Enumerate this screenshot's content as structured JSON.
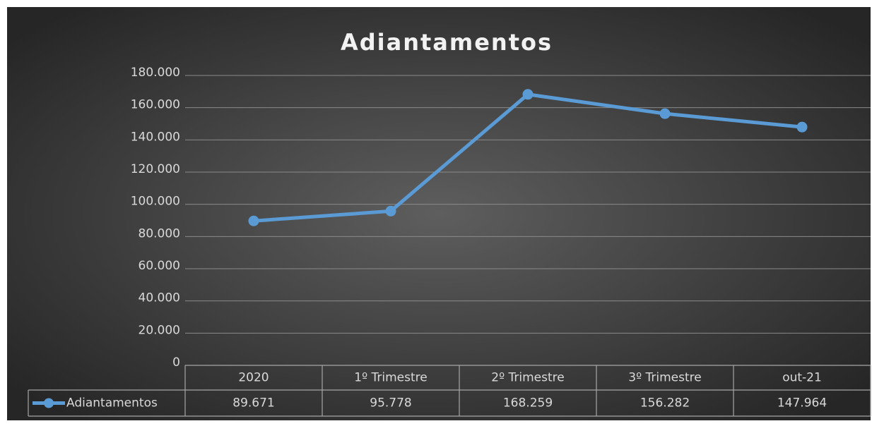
{
  "chart_data": {
    "type": "line",
    "title": "Adiantamentos",
    "categories": [
      "2020",
      "1º Trimestre",
      "2º Trimestre",
      "3º Trimestre",
      "out-21"
    ],
    "series": [
      {
        "name": "Adiantamentos",
        "color": "#5b9bd5",
        "values": [
          89671,
          95778,
          168259,
          156282,
          147964
        ],
        "value_labels": [
          "89.671",
          "95.778",
          "168.259",
          "156.282",
          "147.964"
        ]
      }
    ],
    "ylim": [
      0,
      180000
    ],
    "yticks": [
      0,
      {
        "value": 20000,
        "label": "20.000"
      },
      {
        "value": 40000,
        "label": "40.000"
      },
      {
        "value": 60000,
        "label": "60.000"
      },
      {
        "value": 80000,
        "label": "80.000"
      },
      {
        "value": 100000,
        "label": "100.000"
      },
      {
        "value": 120000,
        "label": "120.000"
      },
      {
        "value": 140000,
        "label": "140.000"
      },
      {
        "value": 160000,
        "label": "160.000"
      },
      {
        "value": 180000,
        "label": "180.000"
      }
    ],
    "grid": true,
    "data_table": true
  }
}
